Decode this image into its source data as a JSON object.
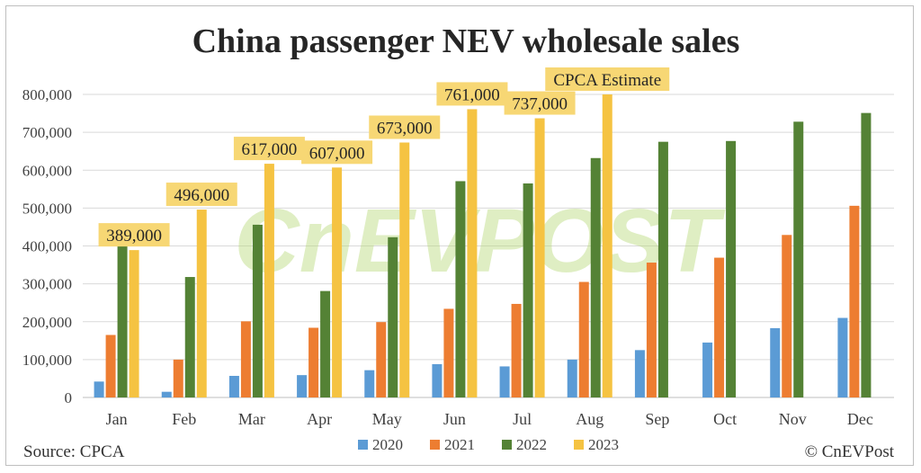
{
  "chart_data": {
    "type": "bar",
    "title": "China passenger NEV wholesale sales",
    "categories": [
      "Jan",
      "Feb",
      "Mar",
      "Apr",
      "May",
      "Jun",
      "Jul",
      "Aug",
      "Sep",
      "Oct",
      "Nov",
      "Dec"
    ],
    "ylim": [
      0,
      800000
    ],
    "yticks": [
      "0",
      "100,000",
      "200,000",
      "300,000",
      "400,000",
      "500,000",
      "600,000",
      "700,000",
      "800,000"
    ],
    "grid": true,
    "legend_position": "bottom",
    "series": [
      {
        "name": "2020",
        "color": "#5b9bd5",
        "values": [
          42000,
          15000,
          57000,
          59000,
          72000,
          88000,
          82000,
          100000,
          125000,
          145000,
          183000,
          210000
        ]
      },
      {
        "name": "2021",
        "color": "#ed7d31",
        "values": [
          165000,
          100000,
          201000,
          184000,
          199000,
          234000,
          247000,
          305000,
          356000,
          369000,
          429000,
          506000
        ]
      },
      {
        "name": "2022",
        "color": "#548235",
        "values": [
          408000,
          318000,
          456000,
          281000,
          423000,
          571000,
          565000,
          632000,
          675000,
          677000,
          728000,
          751000
        ]
      },
      {
        "name": "2023",
        "color": "#f5c342",
        "values": [
          389000,
          496000,
          617000,
          607000,
          673000,
          761000,
          737000,
          800000,
          null,
          null,
          null,
          null
        ]
      }
    ],
    "data_labels": [
      {
        "category": "Jan",
        "text": "389,000"
      },
      {
        "category": "Feb",
        "text": "496,000"
      },
      {
        "category": "Mar",
        "text": "617,000"
      },
      {
        "category": "Apr",
        "text": "607,000"
      },
      {
        "category": "May",
        "text": "673,000"
      },
      {
        "category": "Jun",
        "text": "761,000"
      },
      {
        "category": "Jul",
        "text": "737,000"
      },
      {
        "category": "Aug",
        "text": "CPCA Estimate"
      }
    ],
    "label_color": "#f7d774"
  },
  "footer": {
    "source": "Source: CPCA",
    "credit": "© CnEVPost"
  },
  "watermark": "CnEVPOST"
}
